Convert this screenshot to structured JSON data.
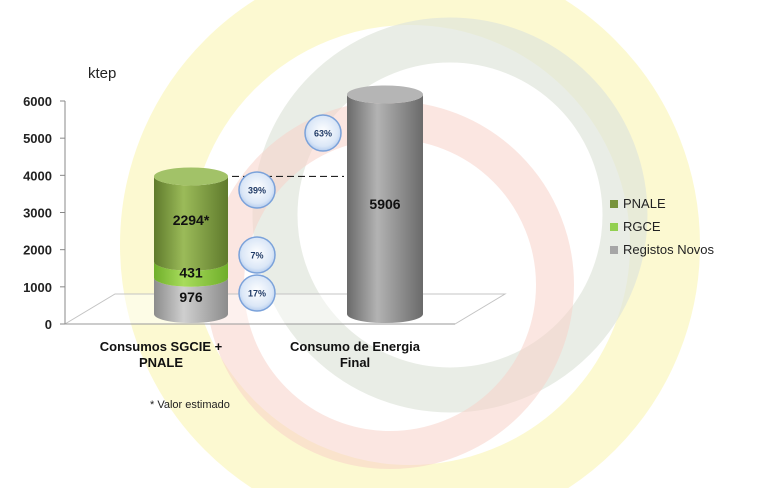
{
  "chart_data": {
    "type": "bar",
    "unit_label": "ktep",
    "categories": [
      "Consumos SGCIE + PNALE",
      "Consumo de Energia Final"
    ],
    "category_lines": [
      [
        "Consumos SGCIE +",
        "PNALE"
      ],
      [
        "Consumo de Energia",
        "Final"
      ]
    ],
    "yticks": [
      0,
      1000,
      2000,
      3000,
      4000,
      5000,
      6000
    ],
    "ylim": [
      0,
      6000
    ],
    "series": [
      {
        "name": "Registos Novos",
        "values": [
          976,
          0
        ],
        "label": "976",
        "pct": "17%",
        "color": "#a6a6a6"
      },
      {
        "name": "RGCE",
        "values": [
          431,
          0
        ],
        "label": "431",
        "pct": "7%",
        "color": "#92d050"
      },
      {
        "name": "PNALE",
        "values": [
          2294,
          0
        ],
        "label": "2294*",
        "pct": "39%",
        "color": "#77933c"
      }
    ],
    "total_bar": {
      "value": 5906,
      "label": "5906",
      "pct": "63%",
      "color": "#7f7f7f"
    },
    "note": "* Valor estimado",
    "legend": [
      {
        "name": "PNALE",
        "color": "#77933c"
      },
      {
        "name": "RGCE",
        "color": "#92d050"
      },
      {
        "name": "Registos Novos",
        "color": "#a6a6a6"
      }
    ]
  }
}
